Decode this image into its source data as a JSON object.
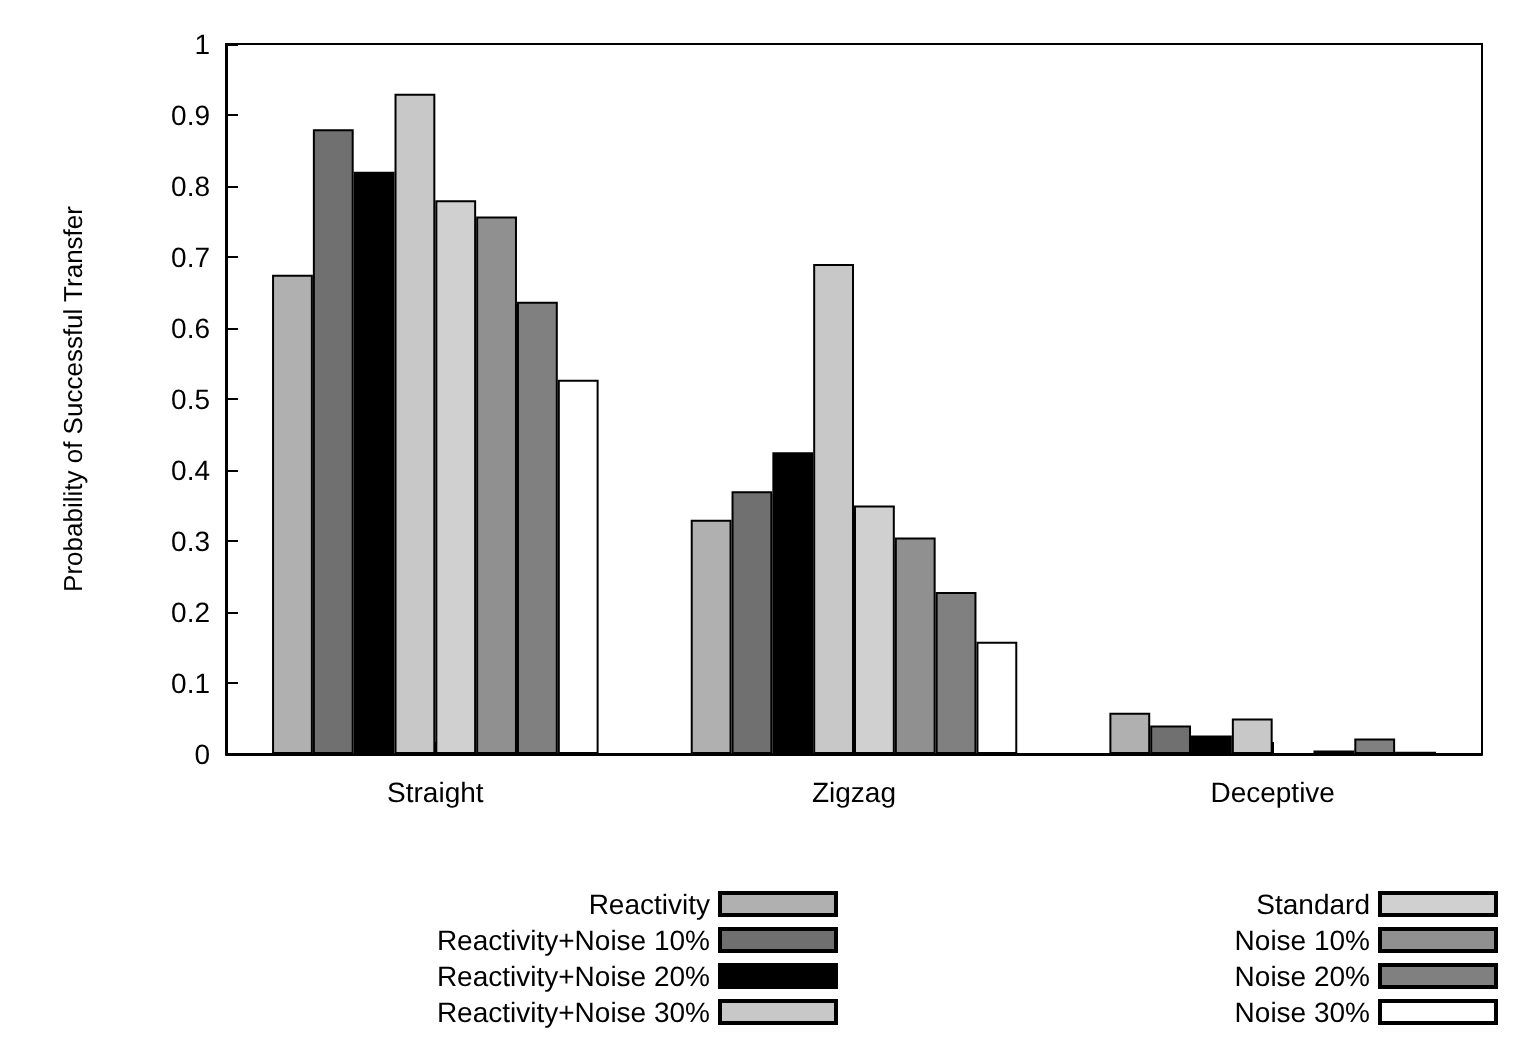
{
  "chart_data": {
    "type": "bar",
    "ylabel": "Probability of Successful Transfer",
    "categories": [
      "Straight",
      "Zigzag",
      "Deceptive"
    ],
    "series": [
      {
        "name": "Reactivity",
        "color": "#b0b0b0",
        "values": [
          0.675,
          0.33,
          0.058
        ]
      },
      {
        "name": "Reactivity+Noise 10%",
        "color": "#707070",
        "values": [
          0.88,
          0.37,
          0.04
        ]
      },
      {
        "name": "Reactivity+Noise 20%",
        "color": "#000000",
        "values": [
          0.82,
          0.425,
          0.026
        ]
      },
      {
        "name": "Reactivity+Noise 30%",
        "color": "#c8c8c8",
        "values": [
          0.93,
          0.69,
          0.05
        ]
      },
      {
        "name": "Standard",
        "color": "#d0d0d0",
        "values": [
          0.78,
          0.35,
          0
        ]
      },
      {
        "name": "Noise 10%",
        "color": "#909090",
        "values": [
          0.757,
          0.305,
          0.005
        ]
      },
      {
        "name": "Noise 20%",
        "color": "#808080",
        "values": [
          0.637,
          0.228,
          0.022
        ]
      },
      {
        "name": "Noise 30%",
        "color": "#ffffff",
        "values": [
          0.527,
          0.158,
          0.003
        ]
      }
    ],
    "ylim": [
      0,
      1
    ],
    "yticks": [
      0,
      0.1,
      0.2,
      0.3,
      0.4,
      0.5,
      0.6,
      0.7,
      0.8,
      0.9,
      1
    ],
    "grid": false,
    "legend": "bottom"
  }
}
